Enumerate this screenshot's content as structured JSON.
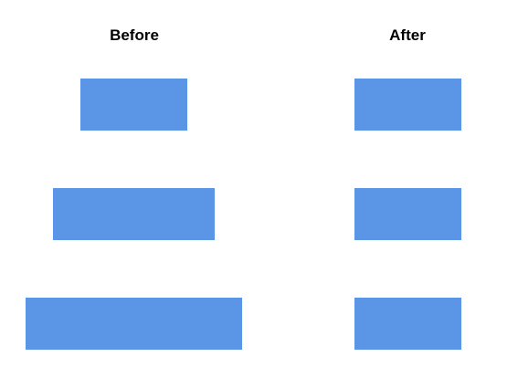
{
  "columns": {
    "before": {
      "title": "Before",
      "boxes": 3
    },
    "after": {
      "title": "After",
      "boxes": 3
    }
  },
  "colors": {
    "box_fill": "#5b95e6",
    "background": "#ffffff",
    "title_text": "#000000"
  }
}
